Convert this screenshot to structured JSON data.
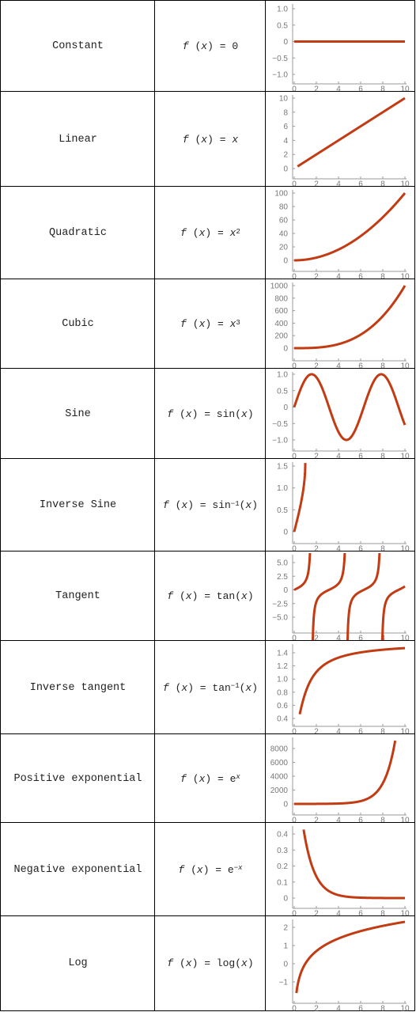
{
  "rows": [
    {
      "name": "Constant",
      "fn": "constant",
      "formula": {
        "pre": "",
        "var": "x",
        "op": "0",
        "sup": "",
        "post": ""
      }
    },
    {
      "name": "Linear",
      "fn": "linear",
      "formula": {
        "pre": "",
        "var": "x",
        "op": "x",
        "sup": "",
        "post": ""
      }
    },
    {
      "name": "Quadratic",
      "fn": "quadratic",
      "formula": {
        "pre": "",
        "var": "x",
        "op": "x",
        "sup": "2",
        "post": ""
      }
    },
    {
      "name": "Cubic",
      "fn": "cubic",
      "formula": {
        "pre": "",
        "var": "x",
        "op": "x",
        "sup": "3",
        "post": ""
      }
    },
    {
      "name": "Sine",
      "fn": "sine",
      "formula": {
        "pre": "",
        "var": "x",
        "op": "sin",
        "sup": "",
        "post": "(x)"
      }
    },
    {
      "name": "Inverse Sine",
      "fn": "arcsin",
      "formula": {
        "pre": "",
        "var": "x",
        "op": "sin",
        "sup": "−1",
        "post": "(x)"
      }
    },
    {
      "name": "Tangent",
      "fn": "tan",
      "formula": {
        "pre": "",
        "var": "x",
        "op": "tan",
        "sup": "",
        "post": "(x)"
      }
    },
    {
      "name": "Inverse tangent",
      "fn": "arctan",
      "formula": {
        "pre": "",
        "var": "x",
        "op": "tan",
        "sup": "−1",
        "post": "(x)"
      }
    },
    {
      "name": "Positive exponential",
      "fn": "exp",
      "formula": {
        "pre": "",
        "var": "x",
        "op": "e",
        "sup": "x",
        "post": ""
      }
    },
    {
      "name": "Negative exponential",
      "fn": "negexp",
      "formula": {
        "pre": "",
        "var": "x",
        "op": "e",
        "sup": "−x",
        "post": ""
      }
    },
    {
      "name": "Log",
      "fn": "log",
      "formula": {
        "pre": "",
        "var": "x",
        "op": "log",
        "sup": "",
        "post": "(x)"
      }
    }
  ],
  "chart_data": [
    {
      "type": "line",
      "function": "f(x) = 0",
      "x": [
        0,
        10
      ],
      "y": [
        0,
        0
      ],
      "xlim": [
        0,
        10
      ],
      "ylim": [
        -1,
        1
      ],
      "xticks": [
        "0",
        "2",
        "4",
        "6",
        "8",
        "10"
      ],
      "yticks": [
        "1.0",
        "0.5",
        "0",
        "−0.5",
        "−1.0"
      ],
      "color": "#c23b12"
    },
    {
      "type": "line",
      "function": "f(x) = x",
      "x": [
        0.3,
        10
      ],
      "y": [
        0.3,
        10
      ],
      "xlim": [
        0,
        10
      ],
      "ylim": [
        0,
        10
      ],
      "xticks": [
        "0",
        "2",
        "4",
        "6",
        "8",
        "10"
      ],
      "yticks": [
        "10",
        "8",
        "6",
        "4",
        "2",
        "0"
      ],
      "color": "#c23b12"
    },
    {
      "type": "line",
      "function": "f(x) = x^2",
      "x": [
        0,
        2,
        4,
        6,
        8,
        10
      ],
      "y": [
        0,
        4,
        16,
        36,
        64,
        100
      ],
      "xlim": [
        0,
        10
      ],
      "ylim": [
        0,
        100
      ],
      "xticks": [
        "0",
        "2",
        "4",
        "6",
        "8",
        "10"
      ],
      "yticks": [
        "100",
        "80",
        "60",
        "40",
        "20",
        "0"
      ],
      "color": "#c23b12"
    },
    {
      "type": "line",
      "function": "f(x) = x^3",
      "x": [
        0,
        2,
        4,
        6,
        8,
        10
      ],
      "y": [
        0,
        8,
        64,
        216,
        512,
        1000
      ],
      "xlim": [
        0,
        10
      ],
      "ylim": [
        0,
        1000
      ],
      "xticks": [
        "0",
        "2",
        "4",
        "6",
        "8",
        "10"
      ],
      "yticks": [
        "1000",
        "800",
        "600",
        "400",
        "200",
        "0"
      ],
      "color": "#c23b12"
    },
    {
      "type": "line",
      "function": "f(x) = sin(x)",
      "x": [
        0,
        1.57,
        4.71,
        7.85,
        10
      ],
      "y": [
        0,
        1,
        -1,
        1,
        -0.54
      ],
      "xlim": [
        0,
        10
      ],
      "ylim": [
        -1,
        1
      ],
      "xticks": [
        "0",
        "2",
        "4",
        "6",
        "8",
        "10"
      ],
      "yticks": [
        "1.0",
        "0.5",
        "0",
        "−0.5",
        "−1.0"
      ],
      "color": "#c23b12"
    },
    {
      "type": "line",
      "function": "f(x) = sin^-1(x)",
      "x": [
        0,
        0.5,
        1
      ],
      "y": [
        0,
        0.52,
        1.57
      ],
      "xlim": [
        0,
        10
      ],
      "ylim": [
        0,
        1.6
      ],
      "xticks": [
        "0",
        "2",
        "4",
        "6",
        "8",
        "10"
      ],
      "yticks": [
        "1.5",
        "1.0",
        "0.5",
        "0"
      ],
      "color": "#c23b12"
    },
    {
      "type": "line",
      "function": "f(x) = tan(x)",
      "x": [
        0,
        1.57,
        4.71,
        7.85,
        10
      ],
      "y": [
        0,
        "±inf",
        "±inf",
        "±inf",
        0.65
      ],
      "xlim": [
        0,
        10
      ],
      "ylim": [
        -7,
        7
      ],
      "xticks": [
        "0",
        "2",
        "4",
        "6",
        "8",
        "10"
      ],
      "yticks": [
        "5.0",
        "2.5",
        "0",
        "−2.5",
        "−5.0"
      ],
      "color": "#c23b12"
    },
    {
      "type": "line",
      "function": "f(x) = tan^-1(x)",
      "x": [
        0.5,
        2,
        4,
        6,
        8,
        10
      ],
      "y": [
        0.46,
        1.11,
        1.33,
        1.41,
        1.45,
        1.47
      ],
      "xlim": [
        0,
        10
      ],
      "ylim": [
        0.4,
        1.5
      ],
      "xticks": [
        "0",
        "2",
        "4",
        "6",
        "8",
        "10"
      ],
      "yticks": [
        "1.4",
        "1.2",
        "1.0",
        "0.8",
        "0.6",
        "0.4"
      ],
      "color": "#c23b12"
    },
    {
      "type": "line",
      "function": "f(x) = e^x",
      "x": [
        0,
        4,
        6,
        8,
        9.1
      ],
      "y": [
        1,
        55,
        403,
        2981,
        8955
      ],
      "xlim": [
        0,
        10
      ],
      "ylim": [
        0,
        9500
      ],
      "xticks": [
        "0",
        "2",
        "4",
        "6",
        "8",
        "10"
      ],
      "yticks": [
        "8000",
        "6000",
        "4000",
        "2000",
        "0"
      ],
      "color": "#c23b12"
    },
    {
      "type": "line",
      "function": "f(x) = e^-x",
      "x": [
        0.85,
        2,
        4,
        6,
        10
      ],
      "y": [
        0.43,
        0.135,
        0.018,
        0.0025,
        0
      ],
      "xlim": [
        0,
        10
      ],
      "ylim": [
        0,
        0.45
      ],
      "xticks": [
        "0",
        "2",
        "4",
        "6",
        "8",
        "10"
      ],
      "yticks": [
        "0.4",
        "0.3",
        "0.2",
        "0.1",
        "0"
      ],
      "color": "#c23b12"
    },
    {
      "type": "line",
      "function": "f(x) = log(x)",
      "x": [
        0.2,
        1,
        2,
        4,
        6,
        8,
        10
      ],
      "y": [
        -1.61,
        0,
        0.69,
        1.39,
        1.79,
        2.08,
        2.3
      ],
      "xlim": [
        0,
        10
      ],
      "ylim": [
        -1.7,
        2.5
      ],
      "xticks": [
        "0",
        "2",
        "4",
        "6",
        "8",
        "10"
      ],
      "yticks": [
        "2",
        "1",
        "0",
        "−1"
      ],
      "color": "#c23b12"
    }
  ]
}
